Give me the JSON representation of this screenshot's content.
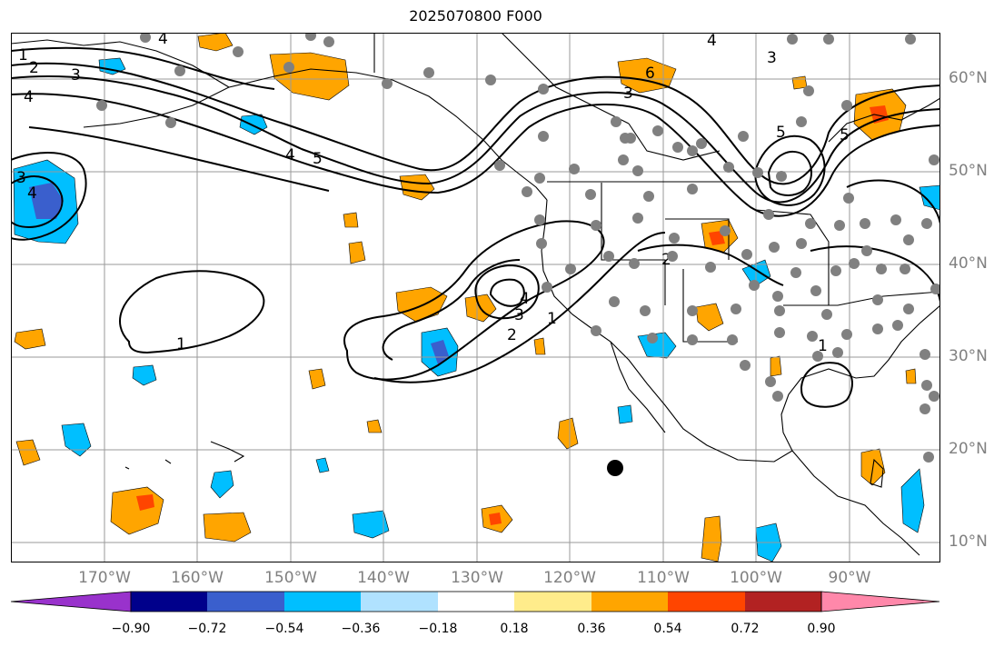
{
  "title": "2025070800 F000",
  "lon_labels": [
    "170°W",
    "160°W",
    "150°W",
    "140°W",
    "130°W",
    "120°W",
    "110°W",
    "100°W",
    "90°W"
  ],
  "lat_labels": [
    "60°N",
    "50°N",
    "40°N",
    "30°N",
    "20°N",
    "10°N"
  ],
  "contour_labels": [
    "1",
    "2",
    "3",
    "4",
    "5",
    "6"
  ],
  "colorbar": {
    "tick_labels": [
      "−0.90",
      "−0.72",
      "−0.54",
      "−0.36",
      "−0.18",
      "0.18",
      "0.36",
      "0.54",
      "0.72",
      "0.90"
    ],
    "colors": [
      "#9932cc",
      "#00008b",
      "#3a5fcd",
      "#00bfff",
      "#b0e2ff",
      "#ffffff",
      "#ffec8b",
      "#ffa500",
      "#ff4500",
      "#b22222",
      "#ff88aa"
    ]
  }
}
